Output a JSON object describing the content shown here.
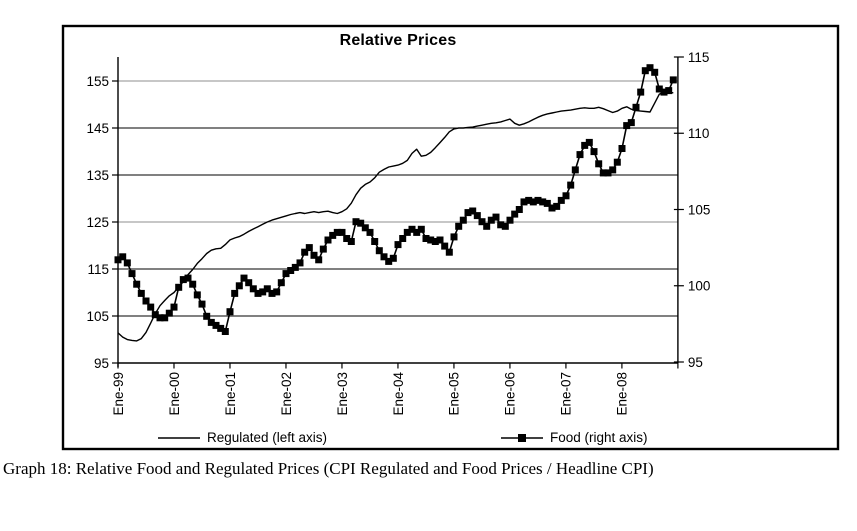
{
  "figure": {
    "caption": "Graph 18: Relative Food and Regulated Prices (CPI Regulated and Food Prices / Headline CPI)"
  },
  "chart_data": {
    "type": "line",
    "title": "Relative Prices",
    "x_labels": [
      "Ene-99",
      "Ene-00",
      "Ene-01",
      "Ene-02",
      "Ene-03",
      "Ene-04",
      "Ene-05",
      "Ene-06",
      "Ene-07",
      "Ene-08"
    ],
    "points_per_year": 12,
    "grid": true,
    "legend_position": "bottom",
    "left_axis": {
      "ticks": [
        95,
        105,
        115,
        125,
        135,
        145,
        155
      ],
      "range": [
        95,
        160
      ]
    },
    "right_axis": {
      "ticks": [
        95,
        100,
        105,
        110,
        115
      ],
      "range": [
        95,
        115
      ]
    },
    "series": [
      {
        "name": "Regulated (left axis)",
        "axis": "left",
        "marker": "none",
        "color": "#000000",
        "values": [
          101.4,
          100.5,
          100.0,
          99.8,
          99.7,
          100.2,
          101.5,
          103.5,
          105.5,
          107.2,
          108.3,
          109.3,
          110.0,
          111.2,
          112.3,
          113.8,
          114.9,
          116.2,
          117.2,
          118.3,
          119.0,
          119.3,
          119.4,
          120.2,
          121.2,
          121.6,
          121.9,
          122.4,
          123.0,
          123.5,
          124.0,
          124.5,
          125.0,
          125.4,
          125.7,
          126.0,
          126.3,
          126.6,
          126.8,
          127.0,
          126.8,
          127.0,
          127.2,
          127.0,
          127.2,
          127.3,
          127.0,
          126.8,
          127.2,
          127.8,
          129.0,
          130.8,
          132.2,
          133.0,
          133.5,
          134.4,
          135.6,
          136.2,
          136.7,
          136.9,
          137.1,
          137.5,
          138.1,
          139.6,
          140.5,
          139.0,
          139.2,
          139.8,
          140.8,
          141.9,
          143.0,
          144.2,
          144.8,
          145.0,
          145.0,
          145.1,
          145.2,
          145.4,
          145.6,
          145.8,
          146.0,
          146.1,
          146.3,
          146.6,
          146.9,
          146.0,
          145.6,
          145.9,
          146.3,
          146.8,
          147.3,
          147.7,
          148.0,
          148.2,
          148.4,
          148.6,
          148.7,
          148.8,
          149.0,
          149.2,
          149.3,
          149.2,
          149.2,
          149.4,
          149.1,
          148.7,
          148.3,
          148.6,
          149.2,
          149.5,
          149.0,
          148.7,
          148.6,
          148.5,
          148.4,
          150.3,
          152.2,
          152.7,
          152.6,
          152.5
        ]
      },
      {
        "name": "Food (right axis)",
        "axis": "right",
        "marker": "square",
        "color": "#000000",
        "values": [
          101.7,
          101.9,
          101.5,
          100.8,
          100.1,
          99.5,
          99.0,
          98.6,
          98.1,
          97.9,
          97.9,
          98.2,
          98.6,
          99.9,
          100.4,
          100.5,
          100.1,
          99.4,
          98.8,
          98.0,
          97.6,
          97.4,
          97.2,
          97.0,
          98.3,
          99.5,
          100.0,
          100.5,
          100.2,
          99.8,
          99.5,
          99.6,
          99.8,
          99.5,
          99.6,
          100.2,
          100.8,
          101.0,
          101.2,
          101.5,
          102.2,
          102.5,
          102.0,
          101.7,
          102.4,
          103.0,
          103.3,
          103.5,
          103.5,
          103.1,
          102.9,
          104.2,
          104.1,
          103.8,
          103.5,
          102.9,
          102.3,
          101.9,
          101.6,
          101.8,
          102.7,
          103.1,
          103.5,
          103.7,
          103.5,
          103.7,
          103.1,
          103.0,
          102.9,
          103.0,
          102.6,
          102.2,
          103.2,
          103.9,
          104.3,
          104.8,
          104.9,
          104.6,
          104.2,
          103.9,
          104.3,
          104.5,
          104.0,
          103.9,
          104.3,
          104.7,
          105.0,
          105.5,
          105.6,
          105.5,
          105.6,
          105.5,
          105.4,
          105.1,
          105.2,
          105.6,
          105.9,
          106.6,
          107.6,
          108.6,
          109.2,
          109.4,
          108.8,
          108.0,
          107.4,
          107.4,
          107.6,
          108.1,
          109.0,
          110.5,
          110.7,
          111.7,
          112.7,
          114.1,
          114.3,
          114.0,
          112.9,
          112.7,
          112.8,
          113.5
        ]
      }
    ]
  }
}
